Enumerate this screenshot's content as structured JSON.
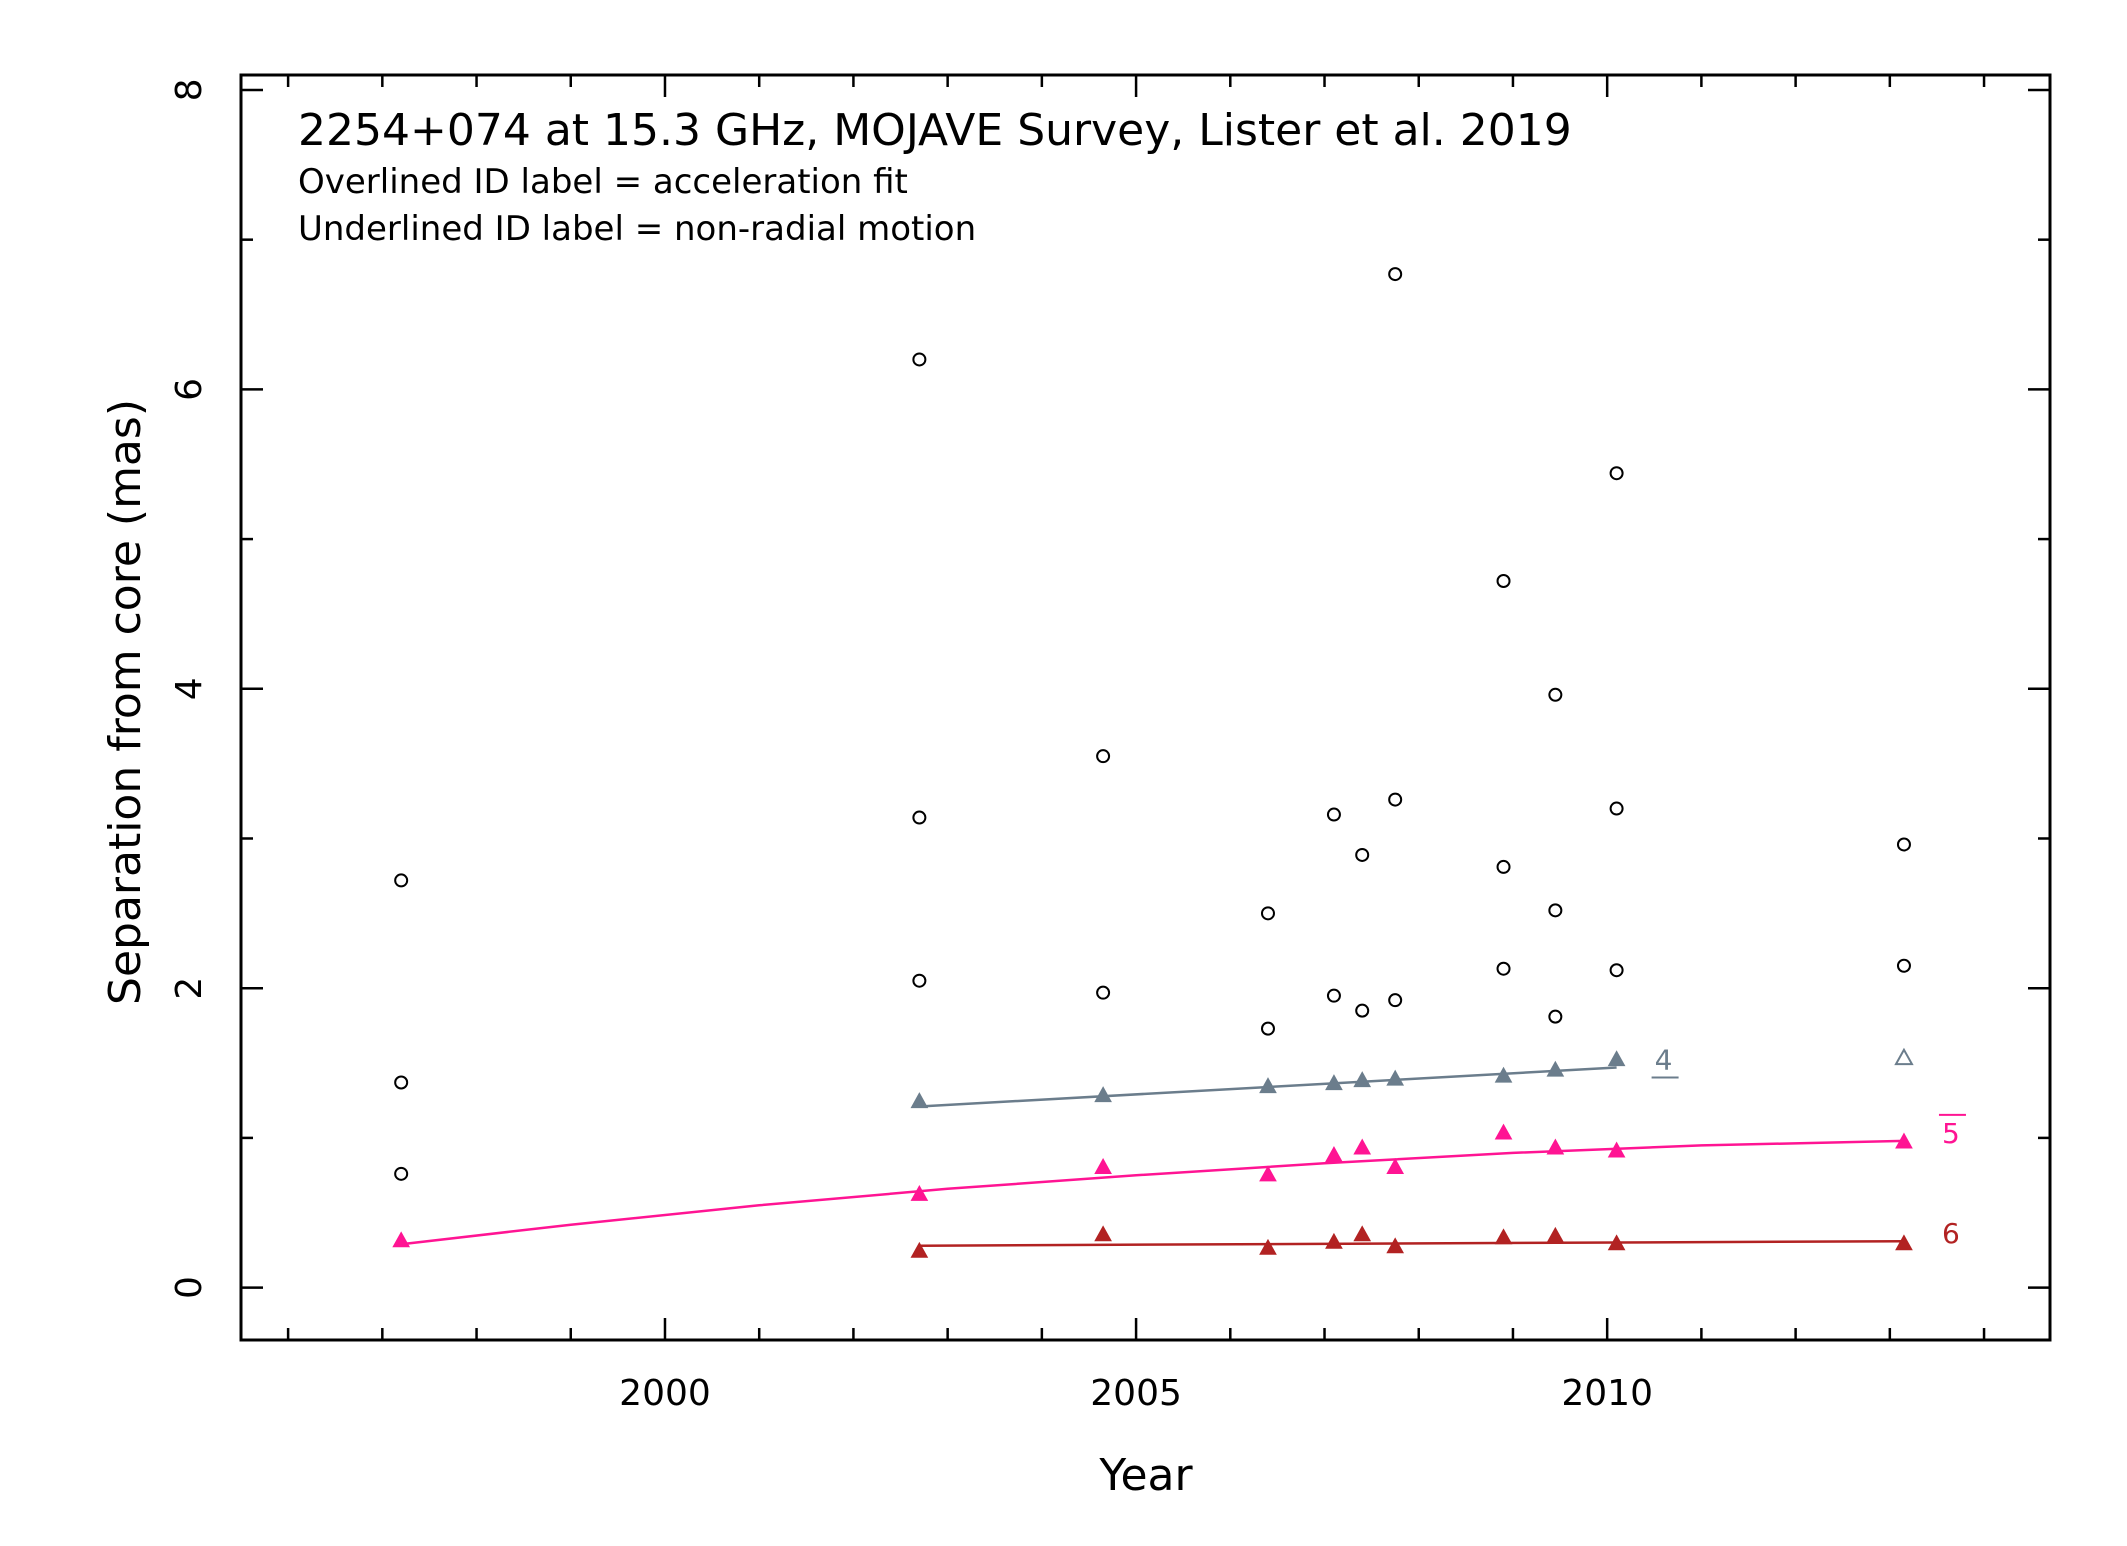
{
  "chart_data": {
    "type": "scatter",
    "title": "2254+074 at 15.3 GHz, MOJAVE Survey, Lister et al. 2019",
    "subtitle_lines": [
      "Overlined ID label = acceleration fit",
      "Underlined ID label = non-radial motion"
    ],
    "xlabel": "Year",
    "ylabel": "Separation from core (mas)",
    "xlim": [
      1995.5,
      2014.7
    ],
    "ylim": [
      -0.35,
      8.1
    ],
    "x_ticks": [
      2000,
      2005,
      2010
    ],
    "x_tick_labels": [
      "2000",
      "2005",
      "2010"
    ],
    "y_ticks": [
      0,
      2,
      4,
      6,
      8
    ],
    "y_tick_labels": [
      "0",
      "2",
      "4",
      "6",
      "8"
    ],
    "grid": false,
    "legend": "none",
    "unassigned_points": {
      "marker": "open-circle",
      "color": "#000000",
      "points": [
        [
          1997.2,
          2.72
        ],
        [
          1997.2,
          1.37
        ],
        [
          1997.2,
          0.76
        ],
        [
          2002.7,
          6.2
        ],
        [
          2002.7,
          3.14
        ],
        [
          2002.7,
          2.05
        ],
        [
          2004.65,
          3.55
        ],
        [
          2004.65,
          1.97
        ],
        [
          2006.4,
          2.5
        ],
        [
          2006.4,
          1.73
        ],
        [
          2007.1,
          3.16
        ],
        [
          2007.1,
          1.95
        ],
        [
          2007.4,
          2.89
        ],
        [
          2007.4,
          1.85
        ],
        [
          2007.75,
          6.77
        ],
        [
          2007.75,
          3.26
        ],
        [
          2007.75,
          1.92
        ],
        [
          2008.9,
          4.72
        ],
        [
          2008.9,
          2.81
        ],
        [
          2008.9,
          2.13
        ],
        [
          2009.45,
          3.96
        ],
        [
          2009.45,
          2.52
        ],
        [
          2009.45,
          1.81
        ],
        [
          2010.1,
          5.44
        ],
        [
          2010.1,
          3.2
        ],
        [
          2010.1,
          2.12
        ],
        [
          2013.15,
          2.96
        ],
        [
          2013.15,
          2.15
        ]
      ]
    },
    "series": [
      {
        "name": "4",
        "id_style": "underlined",
        "color": "#6b7d8c",
        "marker": "filled-triangle",
        "points": [
          [
            2002.7,
            1.24
          ],
          [
            2004.65,
            1.28
          ],
          [
            2006.4,
            1.34
          ],
          [
            2007.1,
            1.36
          ],
          [
            2007.4,
            1.38
          ],
          [
            2007.75,
            1.39
          ],
          [
            2008.9,
            1.41
          ],
          [
            2009.45,
            1.45
          ],
          [
            2010.1,
            1.52
          ]
        ],
        "extra_points": [
          {
            "marker": "open-triangle",
            "points": [
              [
                2013.15,
                1.53
              ]
            ]
          }
        ],
        "fit": {
          "kind": "linear",
          "x": [
            2002.7,
            2010.1
          ],
          "y": [
            1.21,
            1.47
          ]
        }
      },
      {
        "name": "5",
        "id_style": "overlined",
        "color": "#ff1493",
        "marker": "filled-triangle",
        "points": [
          [
            1997.2,
            0.31
          ],
          [
            2002.7,
            0.62
          ],
          [
            2004.65,
            0.8
          ],
          [
            2006.4,
            0.75
          ],
          [
            2007.1,
            0.88
          ],
          [
            2007.4,
            0.93
          ],
          [
            2007.75,
            0.8
          ],
          [
            2008.9,
            1.03
          ],
          [
            2009.45,
            0.93
          ],
          [
            2010.1,
            0.91
          ],
          [
            2013.15,
            0.97
          ]
        ],
        "fit": {
          "kind": "acceleration",
          "x": [
            1997.2,
            1999.0,
            2001.0,
            2003.0,
            2005.0,
            2007.0,
            2009.0,
            2011.0,
            2013.15
          ],
          "y": [
            0.29,
            0.42,
            0.55,
            0.66,
            0.75,
            0.83,
            0.9,
            0.95,
            0.98
          ]
        }
      },
      {
        "name": "6",
        "id_style": "plain",
        "color": "#b22222",
        "marker": "filled-triangle",
        "points": [
          [
            2002.7,
            0.24
          ],
          [
            2004.65,
            0.35
          ],
          [
            2006.4,
            0.26
          ],
          [
            2007.1,
            0.3
          ],
          [
            2007.4,
            0.35
          ],
          [
            2007.75,
            0.27
          ],
          [
            2008.9,
            0.33
          ],
          [
            2009.45,
            0.34
          ],
          [
            2010.1,
            0.29
          ],
          [
            2013.15,
            0.29
          ]
        ],
        "fit": {
          "kind": "linear",
          "x": [
            2002.7,
            2013.15
          ],
          "y": [
            0.28,
            0.31
          ]
        }
      }
    ]
  }
}
